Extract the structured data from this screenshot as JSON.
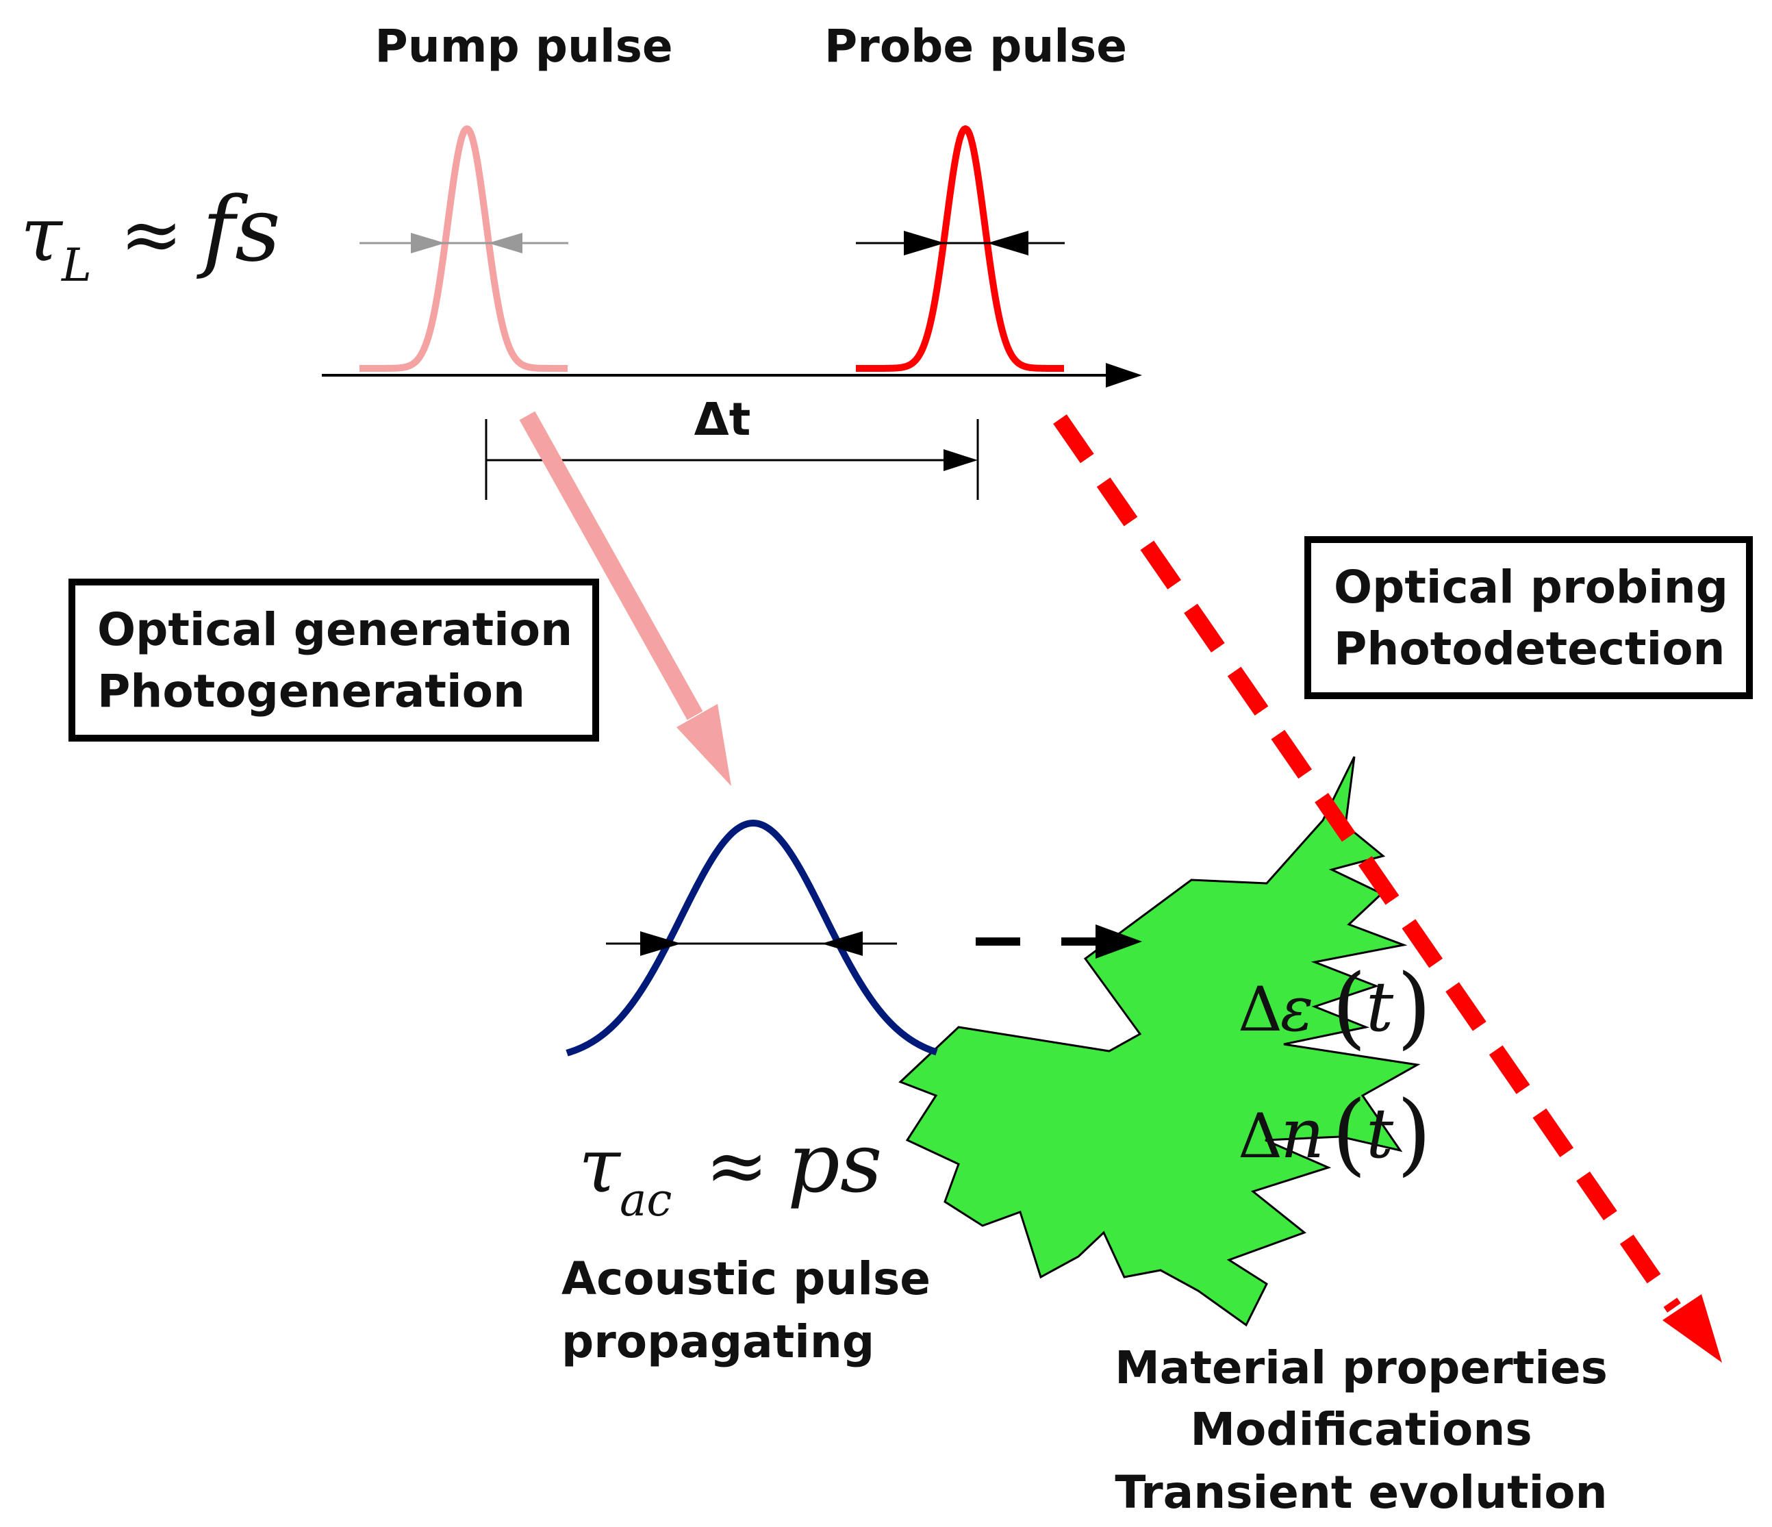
{
  "labels": {
    "pump_pulse": "Pump pulse",
    "probe_pulse": "Probe pulse",
    "delta_t": "Δt",
    "optical_generation": "Optical generation",
    "photogeneration": "Photogeneration",
    "optical_probing": "Optical probing",
    "photodetection": "Photodetection",
    "acoustic_line1": "Acoustic pulse",
    "acoustic_line2": "propagating",
    "result_line1": "Material properties",
    "result_line2": "Modifications",
    "result_line3": "Transient evolution"
  },
  "math": {
    "tau": "τ",
    "sub_L": "L",
    "approx": "≈",
    "fs": "fs",
    "sub_ac": "ac",
    "ps": "ps",
    "delta": "Δ",
    "epsilon": "ε",
    "n": "n",
    "t": "t",
    "lparen": "(",
    "rparen": ")"
  },
  "colors": {
    "pump": "#f4a2a2",
    "probe": "#ff0000",
    "acoustic": "#001a7a",
    "burst_fill": "#3ee83e",
    "line": "#000000",
    "gray_arrow": "#999999"
  }
}
